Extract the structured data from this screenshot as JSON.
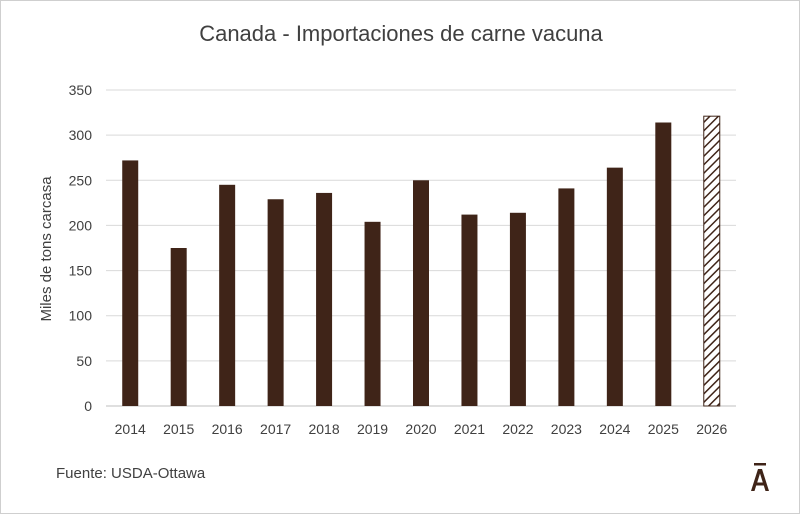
{
  "chart_data": {
    "type": "bar",
    "title": "Canada - Importaciones de carne vacuna",
    "ylabel": "Miles de tons carcasa",
    "xlabel": "",
    "categories": [
      "2014",
      "2015",
      "2016",
      "2017",
      "2018",
      "2019",
      "2020",
      "2021",
      "2022",
      "2023",
      "2024",
      "2025",
      "2026"
    ],
    "values": [
      272,
      175,
      245,
      229,
      236,
      204,
      250,
      212,
      214,
      241,
      264,
      314,
      321
    ],
    "projected": [
      false,
      false,
      false,
      false,
      false,
      false,
      false,
      false,
      false,
      false,
      false,
      false,
      true
    ],
    "ylim": [
      0,
      350
    ],
    "yticks": [
      0,
      50,
      100,
      150,
      200,
      250,
      300,
      350
    ],
    "grid": true,
    "bar_color": "#3f2418",
    "projected_pattern": "diagonal-hatch"
  },
  "source": "Fuente: USDA-Ottawa",
  "logo": {
    "icon": "a-macron-logo",
    "color": "#3f2418"
  }
}
